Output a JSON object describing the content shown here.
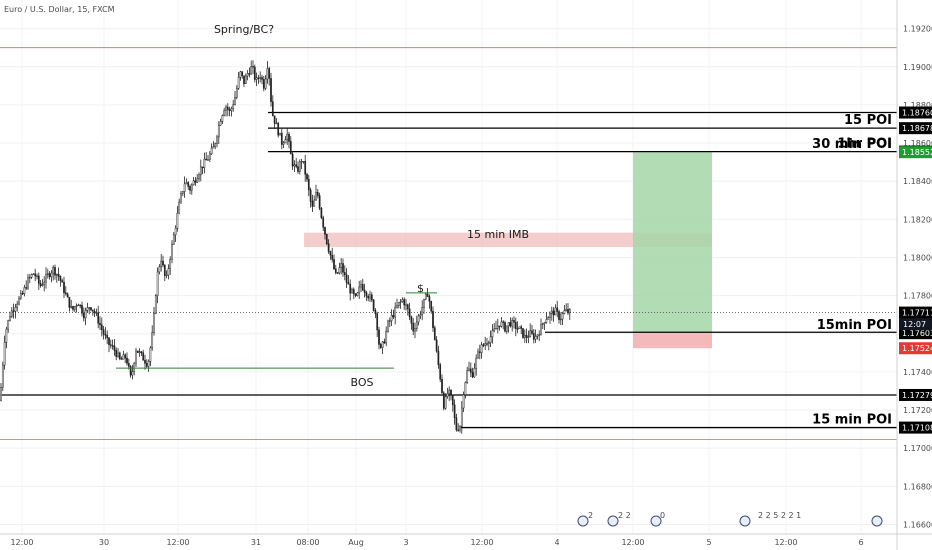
{
  "header": {
    "symbol": "Euro / U.S. Dollar, 15, FXCM"
  },
  "colors": {
    "up": "#2d2d2d",
    "down": "#2d2d2d",
    "long_zone": "#a5d6a7",
    "stop_zone": "#f3b1b1",
    "imb_zone": "#f0b8b8",
    "green": "#2e7d32",
    "red_line": "#d32f2f"
  },
  "chart_data": {
    "type": "candlestick",
    "title": "",
    "xlabel": "",
    "ylabel": "",
    "ylim": [
      1.1655,
      1.1935
    ],
    "y_ticks": [
      "1.16600",
      "1.16800",
      "1.17000",
      "1.17200",
      "1.17400",
      "1.17600",
      "1.17800",
      "1.18000",
      "1.18200",
      "1.18400",
      "1.18600",
      "1.18800",
      "1.19000",
      "1.19200"
    ],
    "x_ticks": [
      "12:00",
      "30",
      "12:00",
      "31",
      "08:00",
      "Aug",
      "3",
      "12:00",
      "4",
      "12:00",
      "5",
      "12:00",
      "6"
    ],
    "close_path": [
      [
        0,
        1.1725
      ],
      [
        5,
        1.176
      ],
      [
        10,
        1.177
      ],
      [
        16,
        1.1776
      ],
      [
        22,
        1.178
      ],
      [
        28,
        1.1788
      ],
      [
        34,
        1.1792
      ],
      [
        40,
        1.1785
      ],
      [
        47,
        1.179
      ],
      [
        53,
        1.1794
      ],
      [
        59,
        1.179
      ],
      [
        66,
        1.178
      ],
      [
        72,
        1.1772
      ],
      [
        78,
        1.1777
      ],
      [
        84,
        1.177
      ],
      [
        90,
        1.1775
      ],
      [
        96,
        1.177
      ],
      [
        102,
        1.1762
      ],
      [
        108,
        1.1755
      ],
      [
        114,
        1.1752
      ],
      [
        120,
        1.1746
      ],
      [
        126,
        1.1748
      ],
      [
        131,
        1.1736
      ],
      [
        136,
        1.1752
      ],
      [
        142,
        1.1748
      ],
      [
        148,
        1.1744
      ],
      [
        153,
        1.1762
      ],
      [
        157,
        1.179
      ],
      [
        161,
        1.18
      ],
      [
        166,
        1.1787
      ],
      [
        170,
        1.18
      ],
      [
        175,
        1.1815
      ],
      [
        180,
        1.183
      ],
      [
        185,
        1.184
      ],
      [
        190,
        1.1836
      ],
      [
        196,
        1.1842
      ],
      [
        202,
        1.1848
      ],
      [
        208,
        1.1852
      ],
      [
        214,
        1.1858
      ],
      [
        220,
        1.1872
      ],
      [
        225,
        1.188
      ],
      [
        230,
        1.1876
      ],
      [
        235,
        1.1884
      ],
      [
        240,
        1.1897
      ],
      [
        244,
        1.1892
      ],
      [
        248,
        1.1897
      ],
      [
        252,
        1.19
      ],
      [
        256,
        1.1892
      ],
      [
        260,
        1.1896
      ],
      [
        264,
        1.189
      ],
      [
        268,
        1.1903
      ],
      [
        272,
        1.1876
      ],
      [
        277,
        1.1868
      ],
      [
        282,
        1.186
      ],
      [
        287,
        1.1865
      ],
      [
        292,
        1.185
      ],
      [
        297,
        1.1845
      ],
      [
        302,
        1.1852
      ],
      [
        307,
        1.184
      ],
      [
        312,
        1.1825
      ],
      [
        317,
        1.1835
      ],
      [
        322,
        1.182
      ],
      [
        327,
        1.1808
      ],
      [
        331,
        1.18
      ],
      [
        336,
        1.179
      ],
      [
        341,
        1.1796
      ],
      [
        346,
        1.1788
      ],
      [
        351,
        1.1782
      ],
      [
        356,
        1.1778
      ],
      [
        361,
        1.1786
      ],
      [
        366,
        1.1782
      ],
      [
        371,
        1.1778
      ],
      [
        376,
        1.177
      ],
      [
        380,
        1.175
      ],
      [
        384,
        1.1756
      ],
      [
        388,
        1.1765
      ],
      [
        393,
        1.177
      ],
      [
        398,
        1.1775
      ],
      [
        403,
        1.1778
      ],
      [
        408,
        1.1772
      ],
      [
        413,
        1.1762
      ],
      [
        418,
        1.1768
      ],
      [
        423,
        1.1775
      ],
      [
        428,
        1.1782
      ],
      [
        432,
        1.1768
      ],
      [
        436,
        1.1752
      ],
      [
        440,
        1.1738
      ],
      [
        444,
        1.1722
      ],
      [
        448,
        1.173
      ],
      [
        452,
        1.1725
      ],
      [
        456,
        1.171
      ],
      [
        460,
        1.1712
      ],
      [
        464,
        1.1732
      ],
      [
        468,
        1.1742
      ],
      [
        472,
        1.1738
      ],
      [
        476,
        1.1746
      ],
      [
        480,
        1.1752
      ],
      [
        485,
        1.1755
      ],
      [
        490,
        1.1758
      ],
      [
        495,
        1.1762
      ],
      [
        500,
        1.1766
      ],
      [
        505,
        1.1763
      ],
      [
        510,
        1.1766
      ],
      [
        515,
        1.1764
      ],
      [
        520,
        1.1762
      ],
      [
        525,
        1.1758
      ],
      [
        530,
        1.176
      ],
      [
        535,
        1.1758
      ],
      [
        540,
        1.1762
      ],
      [
        545,
        1.1768
      ],
      [
        550,
        1.177
      ],
      [
        555,
        1.1772
      ],
      [
        560,
        1.1768
      ],
      [
        565,
        1.1772
      ],
      [
        570,
        1.1771
      ]
    ],
    "levels": [
      {
        "price": 1.191,
        "style": "thin-red"
      },
      {
        "price": 1.1876,
        "style": "black",
        "tag": "1.18760",
        "tag_color": "#000000"
      },
      {
        "price": 1.18678,
        "style": "black",
        "tag": "1.18678",
        "tag_color": "#000000",
        "label": "15 POI"
      },
      {
        "price": 1.18555,
        "style": "black",
        "tag": "1.18555",
        "tag_color": "#000000",
        "label": "1hr POI"
      },
      {
        "price": 1.18552,
        "style": "none",
        "tag": "1.18552",
        "tag_color": "#1e9e32",
        "label": "30 min POI"
      },
      {
        "price": 1.17711,
        "style": "dotted",
        "tag": "1.17711",
        "tag_color": "#000000"
      },
      {
        "price": 1.17608,
        "style": "black",
        "tag": "1.17608",
        "tag_color": "#000000"
      },
      {
        "price": 1.17603,
        "style": "none",
        "tag": "1.17603",
        "tag_color": "#000000",
        "label": "15min POI"
      },
      {
        "price": 1.17524,
        "style": "none",
        "tag": "1.17524",
        "tag_color": "#e53935"
      },
      {
        "price": 1.17279,
        "style": "black",
        "tag": "1.17279",
        "tag_color": "#000000"
      },
      {
        "price": 1.17108,
        "style": "black",
        "tag": "1.17108",
        "tag_color": "#000000",
        "label": "15 min POI"
      },
      {
        "price": 1.17045,
        "style": "thin-red"
      }
    ],
    "current_time_tag": "12:07",
    "annotations": {
      "spring": "Spring/BC?",
      "imb": "15 min IMB",
      "bos": "BOS",
      "dollar": "$"
    },
    "zones": {
      "imb": [
        1.1813,
        1.18055
      ],
      "long_target": [
        1.18552,
        1.17603
      ],
      "long_stop": [
        1.17603,
        1.17524
      ]
    },
    "events": [
      "2",
      "2 2",
      "0",
      "2 2 5 2 2 1"
    ]
  }
}
